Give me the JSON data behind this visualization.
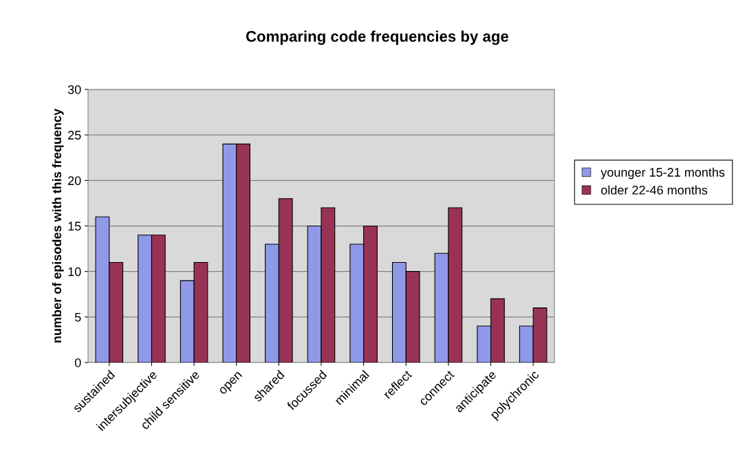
{
  "chart_data": {
    "type": "bar",
    "title": "Comparing code frequencies by age",
    "ylabel": "number of episodes with this frequency",
    "categories": [
      "sustained",
      "intersubjective",
      "child sensitive",
      "open",
      "shared",
      "focussed",
      "minimal",
      "reflect",
      "connect",
      "anticipate",
      "polychronic"
    ],
    "series": [
      {
        "name": "younger 15-21 months",
        "color": "#9099e8",
        "values": [
          16,
          14,
          9,
          24,
          13,
          15,
          13,
          11,
          12,
          4,
          4
        ]
      },
      {
        "name": "older 22-46 months",
        "color": "#993355",
        "values": [
          11,
          14,
          11,
          24,
          18,
          17,
          15,
          10,
          17,
          7,
          6
        ]
      }
    ],
    "ylim": [
      0,
      30
    ],
    "yticks": [
      0,
      5,
      10,
      15,
      20,
      25,
      30
    ],
    "grid": "y",
    "legend": "right"
  }
}
